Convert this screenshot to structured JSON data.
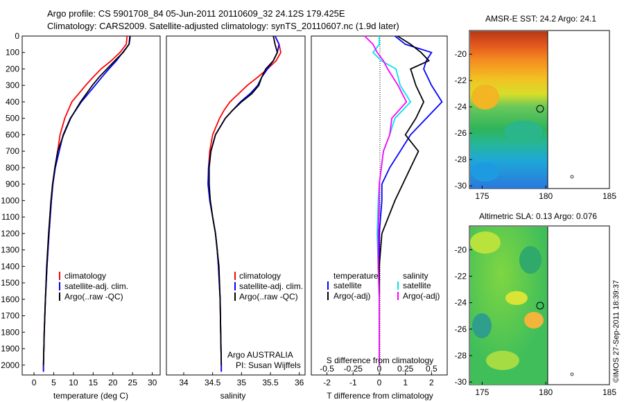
{
  "header": {
    "line1": "Argo profile: CS 5901708_84 05-Jun-2011 20110609_32 24.12S 179.425E",
    "line2": "Climatology: CARS2009. Satellite-adjusted climatology: synTS_20110607.nc (1.9d later)"
  },
  "colors": {
    "climatology": "#ff0000",
    "satellite": "#0000ff",
    "argo": "#000000",
    "s_satellite": "#00e5ee",
    "s_argo": "#ff00ff"
  },
  "chart_data": [
    {
      "type": "line",
      "xlabel": "temperature (deg C)",
      "ylabel": "",
      "xlim": [
        -3,
        32
      ],
      "ylim": [
        2060,
        0
      ],
      "xticks": [
        "0",
        "5",
        "10",
        "15",
        "20",
        "25",
        "30"
      ],
      "yticks": [
        "0",
        "100",
        "200",
        "300",
        "400",
        "500",
        "600",
        "700",
        "800",
        "900",
        "1000",
        "1100",
        "1200",
        "1300",
        "1400",
        "1500",
        "1600",
        "1700",
        "1800",
        "1900",
        "2000"
      ],
      "legend": [
        "climatology",
        "satellite-adj. clim.",
        "Argo(..raw -QC)"
      ],
      "series": [
        {
          "name": "climatology",
          "y": [
            0,
            25,
            50,
            100,
            150,
            200,
            250,
            300,
            400,
            500,
            600,
            700,
            800,
            900,
            1000,
            1200,
            1400,
            1600,
            1800,
            2000,
            2040
          ],
          "values": [
            23.6,
            23.5,
            23.4,
            21.8,
            19.6,
            17.0,
            15.0,
            13.1,
            9.6,
            7.8,
            6.6,
            6.0,
            5.3,
            4.8,
            4.4,
            3.8,
            3.3,
            2.9,
            2.6,
            2.4,
            2.4
          ]
        },
        {
          "name": "satellite-adj. clim.",
          "y": [
            0,
            25,
            50,
            100,
            150,
            200,
            250,
            300,
            400,
            500,
            600,
            700,
            800,
            900,
            1000,
            1200,
            1400,
            1600,
            1800,
            2000,
            2040
          ],
          "values": [
            24.3,
            24.2,
            24.1,
            22.5,
            20.9,
            19.0,
            17.2,
            15.5,
            12.0,
            9.2,
            7.4,
            6.4,
            5.4,
            4.8,
            4.4,
            3.8,
            3.3,
            2.9,
            2.6,
            2.4,
            2.4
          ]
        },
        {
          "name": "Argo(..raw -QC)",
          "y": [
            0,
            25,
            50,
            100,
            150,
            200,
            250,
            300,
            400,
            500,
            600,
            700,
            800,
            900,
            1000,
            1200,
            1400,
            1600,
            1800,
            2000
          ],
          "values": [
            24.4,
            24.3,
            24.1,
            22.6,
            20.5,
            18.5,
            16.5,
            14.8,
            11.8,
            9.3,
            7.5,
            6.0,
            5.3,
            4.7,
            4.3,
            3.7,
            3.2,
            2.9,
            2.6,
            2.4
          ]
        }
      ]
    },
    {
      "type": "line",
      "xlabel": "salinity",
      "ylabel": "",
      "xlim": [
        33.7,
        36.1
      ],
      "ylim": [
        2060,
        0
      ],
      "xticks": [
        "34",
        "34.5",
        "35",
        "35.5",
        "36"
      ],
      "legend": [
        "climatology",
        "satellite-adj. clim.",
        "Argo(..raw -QC)"
      ],
      "annotation": [
        "Argo AUSTRALIA",
        "PI: Susan Wijffels"
      ],
      "series": [
        {
          "name": "climatology",
          "y": [
            0,
            50,
            100,
            150,
            200,
            250,
            300,
            350,
            400,
            450,
            500,
            600,
            700,
            800,
            900,
            1000,
            1100,
            1200,
            1300,
            1400,
            1600,
            1800,
            2000,
            2040
          ],
          "values": [
            35.58,
            35.65,
            35.68,
            35.6,
            35.45,
            35.28,
            35.1,
            34.95,
            34.8,
            34.7,
            34.62,
            34.5,
            34.45,
            34.43,
            34.43,
            34.46,
            34.5,
            34.55,
            34.58,
            34.6,
            34.63,
            34.64,
            34.65,
            34.65
          ]
        },
        {
          "name": "satellite-adj. clim.",
          "y": [
            0,
            50,
            100,
            150,
            200,
            250,
            300,
            350,
            400,
            450,
            500,
            600,
            700,
            800,
            900,
            1000,
            1100,
            1200,
            1300,
            1400,
            1600,
            1800,
            2000,
            2040
          ],
          "values": [
            35.58,
            35.65,
            35.62,
            35.55,
            35.45,
            35.35,
            35.28,
            35.15,
            34.98,
            34.85,
            34.72,
            34.55,
            34.47,
            34.43,
            34.42,
            34.45,
            34.5,
            34.55,
            34.58,
            34.6,
            34.63,
            34.64,
            34.65,
            34.65
          ]
        },
        {
          "name": "Argo(..raw -QC)",
          "y": [
            0,
            50,
            100,
            150,
            200,
            250,
            300,
            350,
            400,
            450,
            500,
            600,
            700,
            800,
            900,
            1000,
            1100,
            1200,
            1300,
            1400,
            1600,
            1800,
            2000
          ],
          "values": [
            35.55,
            35.58,
            35.62,
            35.55,
            35.42,
            35.35,
            35.3,
            35.18,
            35.0,
            34.85,
            34.72,
            34.55,
            34.47,
            34.44,
            34.44,
            34.46,
            34.5,
            34.55,
            34.58,
            34.61,
            34.63,
            34.64,
            34.65
          ]
        }
      ]
    },
    {
      "type": "line",
      "xlabel": "T difference from climatology",
      "xlabel_top": "S difference from climatology",
      "ylabel": "",
      "xlim": [
        -2.6,
        2.6
      ],
      "ylim": [
        2060,
        0
      ],
      "xticks": [
        "-2",
        "-1",
        "0",
        "1",
        "2"
      ],
      "xticks_top": [
        "-0.5",
        "-0.25",
        "0",
        "0.25",
        "0.5"
      ],
      "legend_headers": [
        "temperature",
        "salinity"
      ],
      "legend_t": [
        "satellite",
        "Argo(-adj)"
      ],
      "legend_s": [
        "satellite",
        "Argo(-adj)"
      ],
      "series": [
        {
          "name": "T satellite",
          "y": [
            0,
            50,
            100,
            150,
            200,
            300,
            400,
            500,
            600,
            700,
            800,
            900,
            1000,
            1200,
            1400,
            1600,
            1800,
            2000
          ],
          "values": [
            0.6,
            1.0,
            2.0,
            1.8,
            1.7,
            2.0,
            2.4,
            1.8,
            1.2,
            0.8,
            0.4,
            0.1,
            0.1,
            0.0,
            0.0,
            0.0,
            0.0,
            0.0
          ]
        },
        {
          "name": "T Argo(-adj)",
          "y": [
            0,
            50,
            100,
            150,
            200,
            300,
            400,
            500,
            600,
            700,
            800,
            900,
            1000,
            1200,
            1400,
            1600,
            1800,
            2000
          ],
          "values": [
            0.7,
            1.2,
            1.6,
            1.9,
            1.2,
            1.4,
            1.7,
            1.4,
            1.0,
            1.5,
            1.2,
            0.9,
            0.6,
            0.1,
            0.0,
            0.0,
            0.0,
            0.0
          ]
        },
        {
          "name": "S satellite",
          "y": [
            0,
            50,
            100,
            150,
            200,
            300,
            400,
            500,
            600,
            700,
            800,
            900,
            1000,
            1200,
            1400,
            1600,
            1800,
            2000
          ],
          "values": [
            0.0,
            0.0,
            -0.06,
            0.02,
            0.16,
            0.2,
            0.3,
            0.15,
            0.1,
            0.04,
            0.02,
            0.0,
            -0.01,
            -0.02,
            -0.01,
            0.0,
            0.0,
            0.0
          ]
        },
        {
          "name": "S Argo(-adj)",
          "y": [
            0,
            50,
            100,
            150,
            200,
            300,
            400,
            500,
            600,
            700,
            800,
            900,
            1000,
            1200,
            1400,
            1600,
            1800,
            2000
          ],
          "values": [
            -0.14,
            -0.06,
            -0.02,
            0.04,
            0.08,
            0.18,
            0.26,
            0.12,
            0.1,
            0.04,
            0.02,
            0.0,
            0.0,
            -0.01,
            -0.01,
            0.0,
            0.0,
            0.0
          ]
        }
      ]
    },
    {
      "type": "heatmap",
      "title": "AMSR-E SST: 24.2 Argo: 24.1",
      "xlim": [
        174,
        185
      ],
      "ylim": [
        -30.2,
        -18.2
      ],
      "xticks": [
        "175",
        "180",
        "185"
      ],
      "yticks": [
        "-20",
        "-22",
        "-24",
        "-26",
        "-28",
        "-30"
      ],
      "data_extent_x": [
        174,
        180
      ],
      "argo_position": [
        179.425,
        -24.12
      ]
    },
    {
      "type": "heatmap",
      "title": "Altimetric SLA: 0.13 Argo: 0.076",
      "xlim": [
        174,
        185
      ],
      "ylim": [
        -30.2,
        -18.2
      ],
      "xticks": [
        "175",
        "180",
        "185"
      ],
      "yticks": [
        "-20",
        "-22",
        "-24",
        "-26",
        "-28",
        "-30"
      ],
      "data_extent_x": [
        174,
        180
      ],
      "argo_position": [
        179.425,
        -24.12
      ]
    }
  ],
  "footer": {
    "stamp": "©IMOS 27-Sep-2011 18:39:37"
  }
}
